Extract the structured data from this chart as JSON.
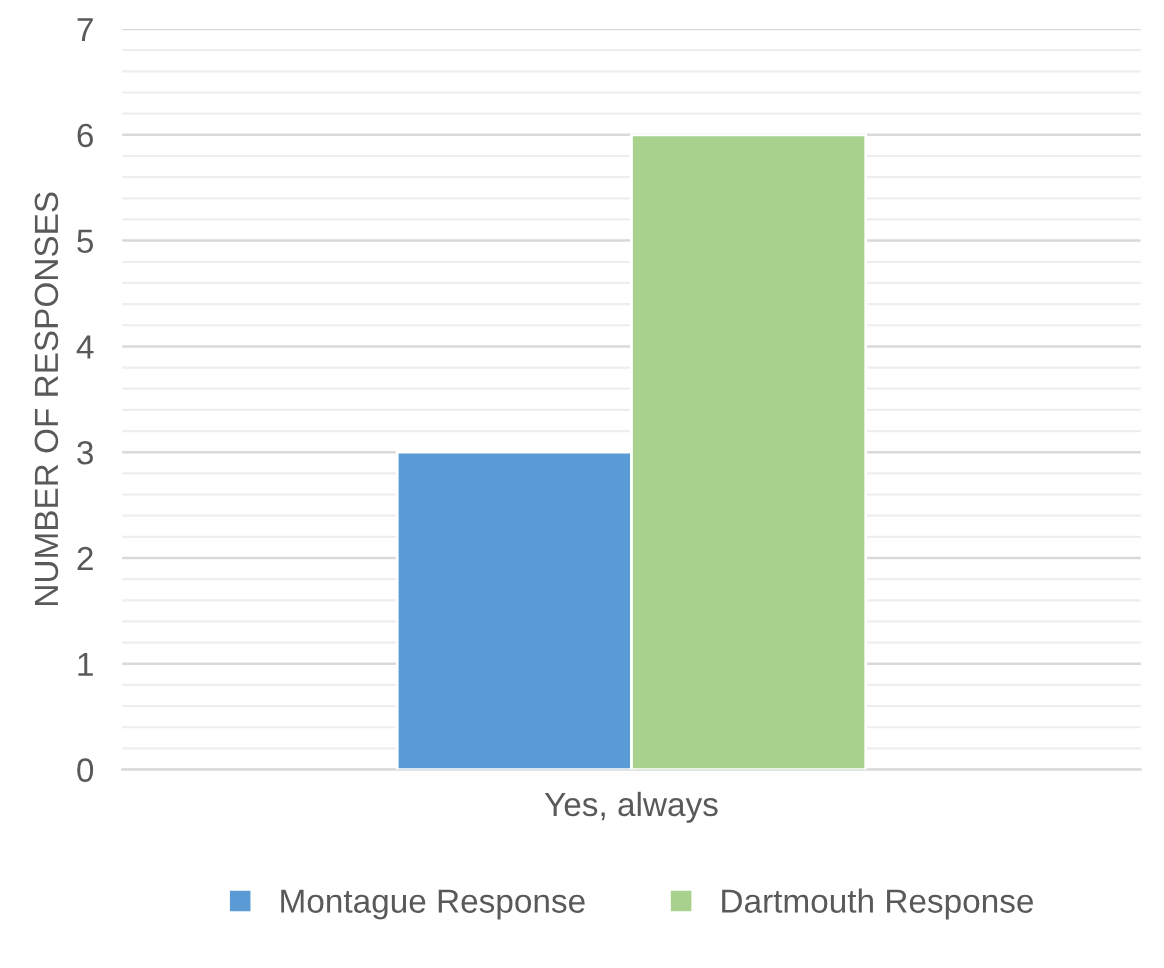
{
  "chart_data": {
    "type": "bar",
    "ylabel": "NUMBER OF RESPONSES",
    "categories": [
      "Yes, always"
    ],
    "series": [
      {
        "name": "Montague Response",
        "color": "#5b9bd5",
        "values": [
          3
        ]
      },
      {
        "name": "Dartmouth Response",
        "color": "#a9d18e",
        "values": [
          6
        ]
      }
    ],
    "ylim": [
      0,
      7
    ],
    "yticks": [
      0,
      1,
      2,
      3,
      4,
      5,
      6,
      7
    ],
    "grid": "y",
    "legend": "bottom"
  }
}
